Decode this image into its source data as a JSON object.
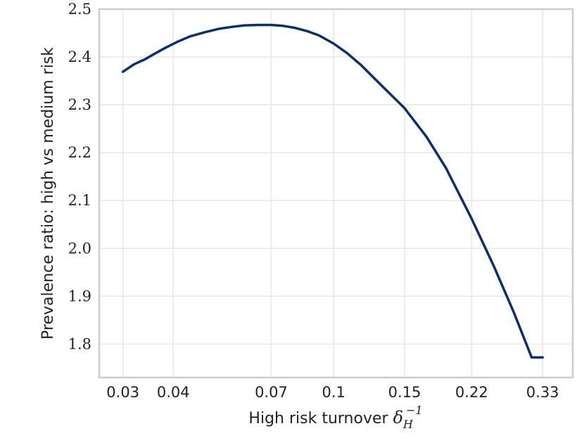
{
  "chart_data": {
    "type": "line",
    "title": "",
    "xlabel": "High risk turnover",
    "xlabel_symbol": "δ",
    "xlabel_subscript": "H",
    "xlabel_superscript": "−1",
    "ylabel": "Prevalence ratio: high vs medium risk",
    "x_scale": "log",
    "x_ticks": [
      0.03,
      0.04,
      0.07,
      0.1,
      0.15,
      0.22,
      0.33
    ],
    "x_tick_labels": [
      "0.03",
      "0.04",
      "0.07",
      "0.1",
      "0.15",
      "0.22",
      "0.33"
    ],
    "xlim": [
      0.0262,
      0.392
    ],
    "ylim": [
      1.73,
      2.5
    ],
    "y_ticks": [
      1.8,
      1.9,
      2.0,
      2.1,
      2.2,
      2.3,
      2.4,
      2.5
    ],
    "y_tick_labels": [
      "1.8",
      "1.9",
      "2.0",
      "2.1",
      "2.2",
      "2.3",
      "2.4",
      "2.5"
    ],
    "grid": true,
    "series": [
      {
        "color": "#0b2f6b",
        "x": [
          0.03,
          0.032,
          0.034,
          0.036,
          0.038,
          0.041,
          0.044,
          0.048,
          0.052,
          0.056,
          0.06,
          0.065,
          0.07,
          0.075,
          0.08,
          0.086,
          0.092,
          0.1,
          0.108,
          0.117,
          0.127,
          0.15,
          0.17,
          0.19,
          0.22,
          0.25,
          0.28,
          0.31,
          0.33
        ],
        "y": [
          2.369,
          2.385,
          2.395,
          2.407,
          2.418,
          2.432,
          2.443,
          2.452,
          2.459,
          2.463,
          2.466,
          2.467,
          2.467,
          2.465,
          2.461,
          2.454,
          2.445,
          2.428,
          2.408,
          2.383,
          2.353,
          2.293,
          2.233,
          2.168,
          2.062,
          1.962,
          1.866,
          1.772,
          1.772
        ]
      }
    ]
  },
  "colors": {
    "line": "#0b2f6b",
    "grid": "#e8e8e8",
    "frame": "#cccccc"
  }
}
